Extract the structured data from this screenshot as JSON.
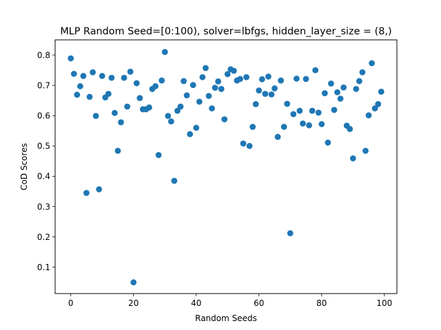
{
  "colors": {
    "marker": "#1f77b4",
    "axis": "#000000",
    "background": "#ffffff"
  },
  "chart_data": {
    "type": "scatter",
    "title": "MLP Random Seed=[0:100), solver=lbfgs, hidden_layer_size = (8,)",
    "xlabel": "Random Seeds",
    "ylabel": "CoD Scores",
    "xlim": [
      -5,
      104
    ],
    "ylim": [
      0.013,
      0.85
    ],
    "xticks": [
      0,
      20,
      40,
      60,
      80,
      100
    ],
    "xtick_labels": [
      "0",
      "20",
      "40",
      "60",
      "80",
      "100"
    ],
    "yticks": [
      0.1,
      0.2,
      0.3,
      0.4,
      0.5,
      0.6,
      0.7,
      0.8
    ],
    "ytick_labels": [
      "0.1",
      "0.2",
      "0.3",
      "0.4",
      "0.5",
      "0.6",
      "0.7",
      "0.8"
    ],
    "grid": false,
    "x": [
      0,
      1,
      2,
      3,
      4,
      5,
      6,
      7,
      8,
      9,
      10,
      11,
      12,
      13,
      14,
      15,
      16,
      17,
      18,
      19,
      20,
      21,
      22,
      23,
      24,
      25,
      26,
      27,
      28,
      29,
      30,
      31,
      32,
      33,
      34,
      35,
      36,
      37,
      38,
      39,
      40,
      41,
      42,
      43,
      44,
      45,
      46,
      47,
      48,
      49,
      50,
      51,
      52,
      53,
      54,
      55,
      56,
      57,
      58,
      59,
      60,
      61,
      62,
      63,
      64,
      65,
      66,
      67,
      68,
      69,
      70,
      71,
      72,
      73,
      74,
      75,
      76,
      77,
      78,
      79,
      80,
      81,
      82,
      83,
      84,
      85,
      86,
      87,
      88,
      89,
      90,
      91,
      92,
      93,
      94,
      95,
      96,
      97,
      98,
      99
    ],
    "y": [
      0.789,
      0.738,
      0.669,
      0.697,
      0.731,
      0.345,
      0.662,
      0.743,
      0.599,
      0.357,
      0.731,
      0.66,
      0.672,
      0.725,
      0.609,
      0.484,
      0.578,
      0.725,
      0.63,
      0.745,
      0.05,
      0.707,
      0.658,
      0.621,
      0.621,
      0.627,
      0.688,
      0.697,
      0.47,
      0.716,
      0.81,
      0.599,
      0.581,
      0.385,
      0.616,
      0.63,
      0.714,
      0.667,
      0.539,
      0.701,
      0.56,
      0.646,
      0.727,
      0.757,
      0.665,
      0.624,
      0.692,
      0.713,
      0.688,
      0.588,
      0.737,
      0.753,
      0.748,
      0.716,
      0.721,
      0.508,
      0.727,
      0.5,
      0.563,
      0.638,
      0.683,
      0.72,
      0.672,
      0.729,
      0.67,
      0.69,
      0.53,
      0.716,
      0.563,
      0.639,
      0.212,
      0.605,
      0.722,
      0.616,
      0.574,
      0.721,
      0.568,
      0.616,
      0.75,
      0.61,
      0.572,
      0.674,
      0.511,
      0.706,
      0.619,
      0.677,
      0.656,
      0.693,
      0.567,
      0.556,
      0.459,
      0.688,
      0.714,
      0.743,
      0.484,
      0.601,
      0.773,
      0.624,
      0.638,
      0.679
    ]
  }
}
